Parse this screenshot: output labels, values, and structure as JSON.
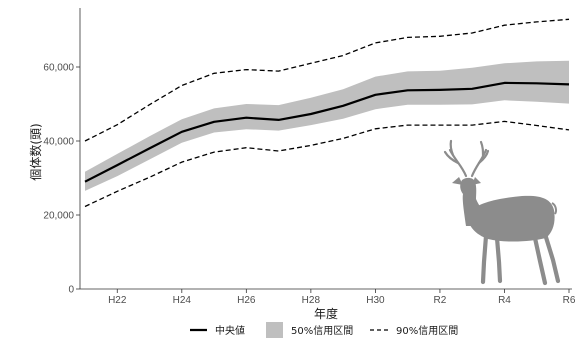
{
  "chart_data": {
    "type": "line",
    "xlabel": "年度",
    "ylabel": "個体数(頭)",
    "x_ticks": [
      "H22",
      "H24",
      "H26",
      "H28",
      "H30",
      "R2",
      "R4",
      "R6"
    ],
    "y_ticks": [
      "0",
      "20,000",
      "40,000",
      "60,000"
    ],
    "ylim": [
      0,
      73000
    ],
    "grid": false,
    "legend_position": "bottom",
    "x": [
      "H21",
      "H22",
      "H23",
      "H24",
      "H25",
      "H26",
      "H27",
      "H28",
      "H29",
      "H30",
      "R1",
      "R2",
      "R3",
      "R4",
      "R5",
      "R6"
    ],
    "series": [
      {
        "name": "中央値",
        "style": "solid",
        "values": [
          29000,
          33500,
          38000,
          42500,
          45200,
          46300,
          45700,
          47300,
          49500,
          52500,
          53700,
          53800,
          54100,
          55700,
          55600,
          55300
        ]
      },
      {
        "name": "50%信用区間",
        "style": "band",
        "lower": [
          26500,
          30500,
          35000,
          39500,
          42300,
          43200,
          42800,
          44300,
          46000,
          48600,
          49800,
          49800,
          49900,
          51000,
          50600,
          50100
        ],
        "upper": [
          31700,
          36500,
          41300,
          45900,
          48800,
          50000,
          49700,
          51700,
          54000,
          57400,
          58800,
          59000,
          59800,
          61000,
          61500,
          61700
        ]
      },
      {
        "name": "90%信用区間",
        "style": "dashed",
        "lower": [
          22300,
          26400,
          30200,
          34300,
          37000,
          38200,
          37300,
          38800,
          40700,
          43300,
          44300,
          44300,
          44300,
          45300,
          44200,
          43000
        ],
        "upper": [
          40000,
          44400,
          49800,
          55000,
          58300,
          59300,
          58900,
          61000,
          63100,
          66500,
          68000,
          68300,
          69200,
          71300,
          72200,
          72900
        ]
      }
    ],
    "colors": {
      "median": "#000000",
      "band50": "#bfbfbf",
      "interval90": "#000000",
      "deer": "#8c8c8c",
      "axis": "#333333"
    }
  },
  "decoration": {
    "icon": "deer-silhouette-icon"
  }
}
